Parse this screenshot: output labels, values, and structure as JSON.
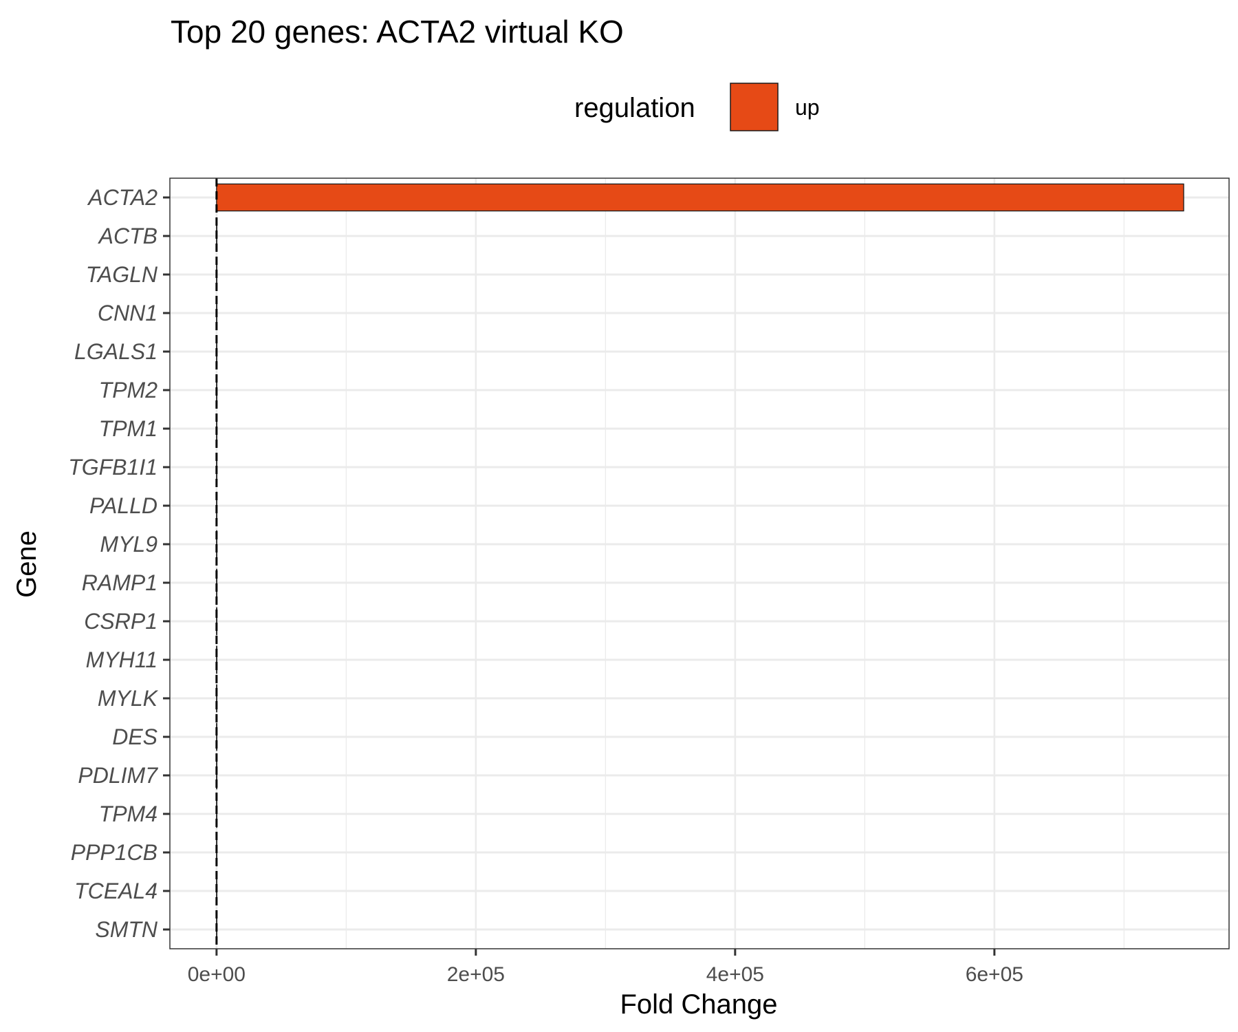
{
  "chart_data": {
    "type": "bar",
    "orientation": "horizontal",
    "title": "Top 20 genes: ACTA2 virtual KO",
    "xlabel": "Fold Change",
    "ylabel": "Gene",
    "xlim": [
      -36000,
      781000
    ],
    "x_ticks": [
      0,
      200000,
      400000,
      600000
    ],
    "x_tick_labels": [
      "0e+00",
      "2e+05",
      "4e+05",
      "6e+05"
    ],
    "reference_line": {
      "x": 0,
      "style": "dashed"
    },
    "grid": true,
    "legend": {
      "title": "regulation",
      "position": "top",
      "entries": [
        {
          "label": "up",
          "color": "#E64A16"
        }
      ]
    },
    "categories": [
      "ACTA2",
      "ACTB",
      "TAGLN",
      "CNN1",
      "LGALS1",
      "TPM2",
      "TPM1",
      "TGFB1I1",
      "PALLD",
      "MYL9",
      "RAMP1",
      "CSRP1",
      "MYH11",
      "MYLK",
      "DES",
      "PDLIM7",
      "TPM4",
      "PPP1CB",
      "TCEAL4",
      "SMTN"
    ],
    "series": [
      {
        "name": "up",
        "color": "#E64A16",
        "values": [
          746000,
          1,
          1,
          1,
          1,
          1,
          1,
          1,
          1,
          1,
          1,
          1,
          1,
          1,
          1,
          1,
          1,
          1,
          1,
          1
        ]
      }
    ]
  }
}
